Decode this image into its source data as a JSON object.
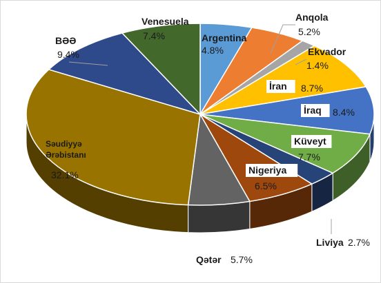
{
  "chart_data": {
    "type": "pie",
    "title": "",
    "categories": [
      "Argentina",
      "Anqola",
      "Ekvador",
      "İran",
      "İraq",
      "Küveyt",
      "Liviya",
      "Nigeriya",
      "Qətər",
      "Səudiyyə Ərəbistanı",
      "BƏƏ",
      "Venesuela"
    ],
    "values": [
      4.8,
      5.2,
      1.4,
      8.7,
      8.4,
      7.7,
      2.7,
      6.5,
      5.7,
      32.1,
      9.4,
      7.4
    ],
    "value_labels": [
      "4.8%",
      "5.2%",
      "1.4%",
      "8.7%",
      "8.4%",
      "7.7%",
      "2.7%",
      "6.5%",
      "5.7%",
      "32.1%",
      "9.4%",
      "7.4%"
    ],
    "name_lines": [
      [
        "Argentina"
      ],
      [
        "Anqola"
      ],
      [
        "Ekvador"
      ],
      [
        "İran"
      ],
      [
        "İraq"
      ],
      [
        "Küveyt"
      ],
      [
        "Liviya"
      ],
      [
        "Nigeriya"
      ],
      [
        "Qətər"
      ],
      [
        "Səudiyyə",
        "Ərəbistanı"
      ],
      [
        "BƏƏ"
      ],
      [
        "Venesuela"
      ]
    ],
    "colors": [
      "#5b9bd5",
      "#ed7d31",
      "#a5a5a5",
      "#ffc000",
      "#4472c4",
      "#70ad47",
      "#264478",
      "#9e480e",
      "#636363",
      "#997300",
      "#2e4a8a",
      "#43682b"
    ],
    "start_angle_deg": 270,
    "direction": "clockwise",
    "style": "3d-pie",
    "legend": "none"
  }
}
